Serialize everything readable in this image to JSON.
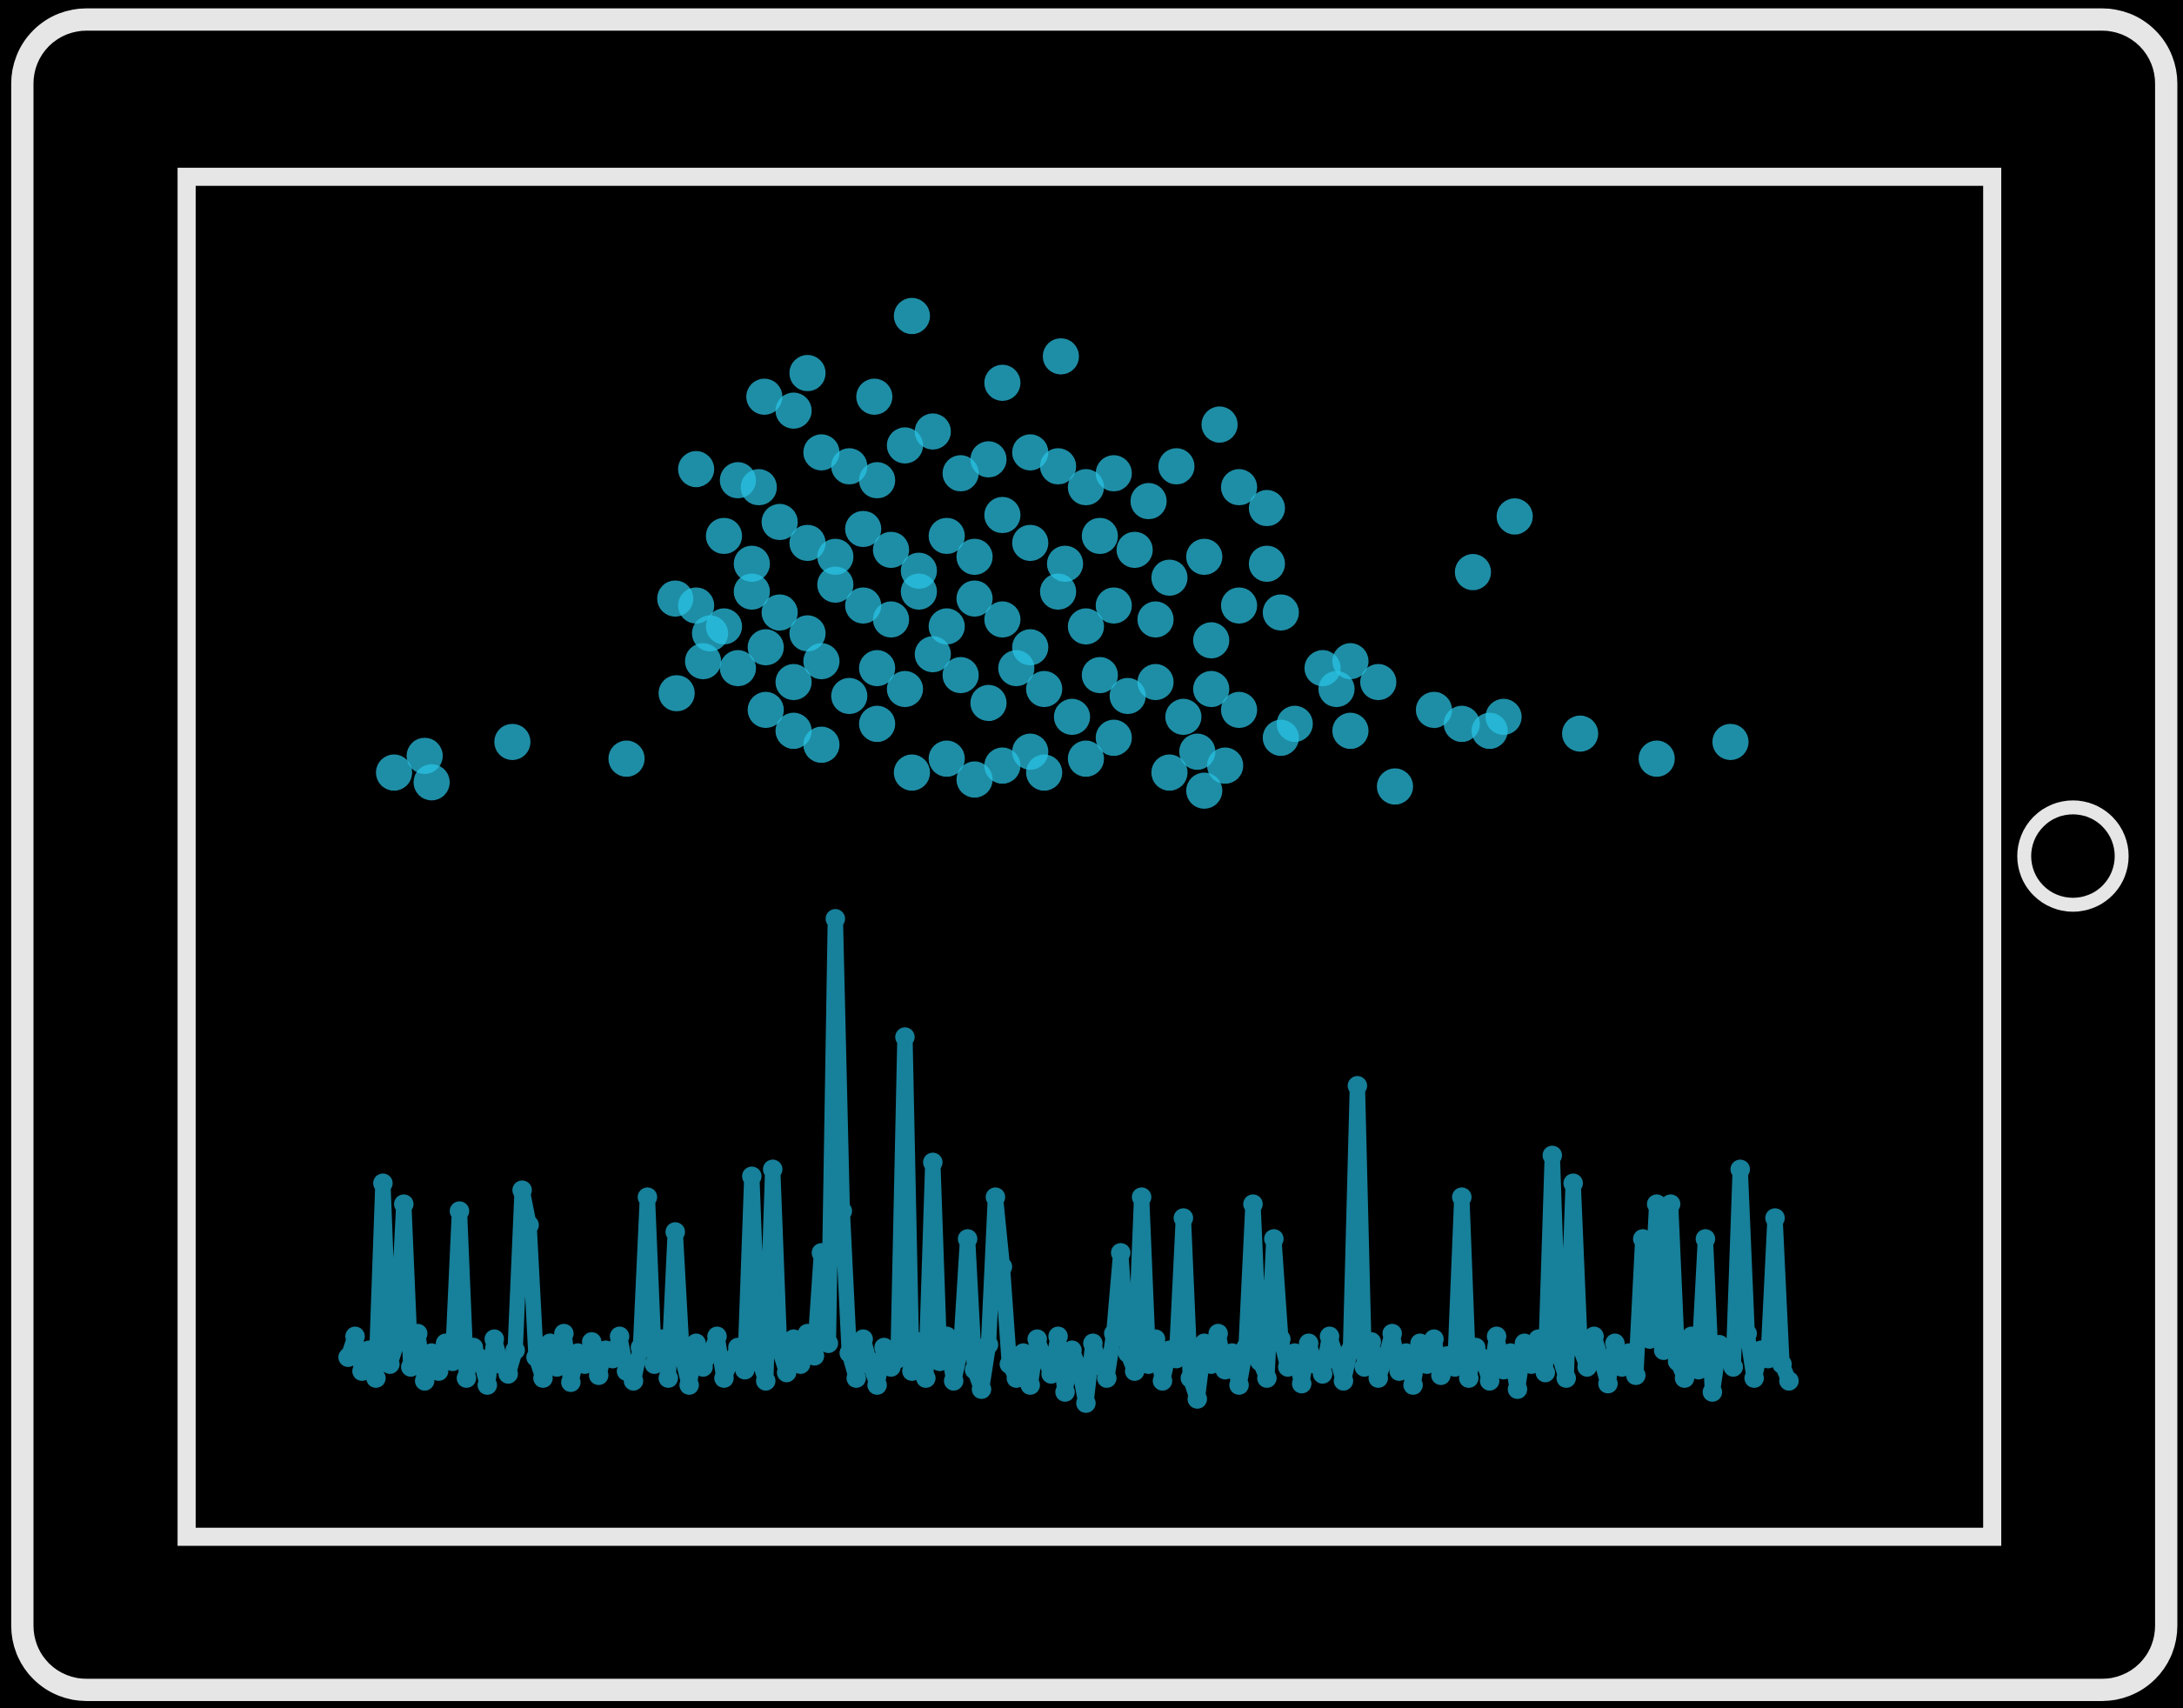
{
  "chart_data": [
    {
      "type": "scatter",
      "color": "#29c5e6",
      "xlim": [
        0,
        1000
      ],
      "ylim": [
        0,
        350
      ],
      "x": [
        13,
        35,
        40,
        98,
        180,
        385,
        492,
        310,
        279,
        358,
        450,
        606,
        818,
        788,
        865,
        920,
        973,
        732,
        595,
        230,
        216,
        260,
        275,
        300,
        320,
        340,
        360,
        380,
        400,
        420,
        440,
        470,
        490,
        510,
        530,
        555,
        575,
        620,
        640,
        250,
        270,
        290,
        310,
        330,
        350,
        370,
        390,
        410,
        430,
        450,
        470,
        495,
        520,
        545,
        570,
        595,
        640,
        230,
        250,
        270,
        290,
        310,
        330,
        350,
        370,
        390,
        410,
        430,
        450,
        470,
        490,
        510,
        530,
        560,
        600,
        620,
        650,
        680,
        700,
        720,
        235,
        260,
        280,
        300,
        320,
        340,
        360,
        380,
        400,
        420,
        440,
        460,
        480,
        500,
        520,
        540,
        560,
        580,
        600,
        620,
        650,
        660,
        690,
        700,
        760,
        780,
        800,
        810,
        280,
        300,
        320,
        360,
        385,
        410,
        430,
        450,
        470,
        480,
        510,
        530,
        570,
        590,
        610,
        240,
        215
      ],
      "values": [
        20,
        32,
        13,
        42,
        30,
        348,
        319,
        307,
        290,
        290,
        300,
        270,
        204,
        164,
        48,
        30,
        42,
        10,
        7,
        238,
        77,
        230,
        225,
        280,
        250,
        240,
        230,
        255,
        265,
        235,
        245,
        250,
        240,
        225,
        235,
        215,
        240,
        225,
        210,
        190,
        170,
        200,
        185,
        175,
        195,
        180,
        165,
        190,
        175,
        205,
        185,
        170,
        190,
        180,
        160,
        175,
        170,
        140,
        125,
        150,
        135,
        120,
        155,
        140,
        130,
        150,
        125,
        145,
        130,
        110,
        150,
        125,
        140,
        130,
        115,
        140,
        135,
        95,
        100,
        85,
        100,
        95,
        110,
        85,
        100,
        75,
        95,
        80,
        105,
        90,
        70,
        95,
        80,
        60,
        90,
        75,
        85,
        60,
        80,
        65,
        45,
        55,
        80,
        50,
        65,
        55,
        50,
        60,
        65,
        50,
        40,
        55,
        20,
        30,
        15,
        25,
        35,
        20,
        30,
        45,
        20,
        35,
        25,
        120,
        145
      ]
    },
    {
      "type": "line",
      "color": "#17809a",
      "ylim": [
        0,
        400
      ],
      "values": [
        45,
        60,
        35,
        50,
        30,
        170,
        40,
        55,
        155,
        38,
        62,
        28,
        48,
        35,
        55,
        42,
        150,
        30,
        52,
        44,
        25,
        58,
        40,
        33,
        50,
        165,
        140,
        45,
        30,
        55,
        38,
        62,
        27,
        48,
        40,
        56,
        32,
        50,
        44,
        60,
        35,
        28,
        52,
        160,
        40,
        58,
        30,
        135,
        45,
        25,
        55,
        38,
        48,
        60,
        30,
        42,
        52,
        36,
        175,
        44,
        28,
        180,
        50,
        34,
        58,
        40,
        62,
        46,
        120,
        55,
        360,
        150,
        48,
        30,
        58,
        40,
        25,
        52,
        38,
        44,
        275,
        35,
        56,
        30,
        185,
        42,
        60,
        28,
        50,
        130,
        36,
        22,
        54,
        160,
        110,
        40,
        30,
        48,
        25,
        58,
        45,
        33,
        60,
        20,
        50,
        38,
        12,
        55,
        42,
        30,
        62,
        120,
        48,
        35,
        160,
        40,
        58,
        28,
        50,
        44,
        145,
        30,
        15,
        55,
        40,
        62,
        36,
        48,
        25,
        52,
        155,
        42,
        30,
        130,
        58,
        38,
        48,
        26,
        55,
        40,
        33,
        60,
        45,
        28,
        50,
        240,
        38,
        56,
        30,
        44,
        62,
        35,
        48,
        25,
        55,
        40,
        58,
        32,
        46,
        38,
        160,
        30,
        52,
        44,
        28,
        60,
        36,
        48,
        22,
        55,
        40,
        58,
        34,
        190,
        46,
        30,
        170,
        52,
        38,
        60,
        44,
        26,
        55,
        38,
        48,
        32,
        130,
        58,
        155,
        50,
        155,
        42,
        30,
        60,
        36,
        130,
        20,
        54,
        45,
        38,
        180,
        62,
        30,
        50,
        44,
        145,
        40,
        28
      ]
    }
  ]
}
